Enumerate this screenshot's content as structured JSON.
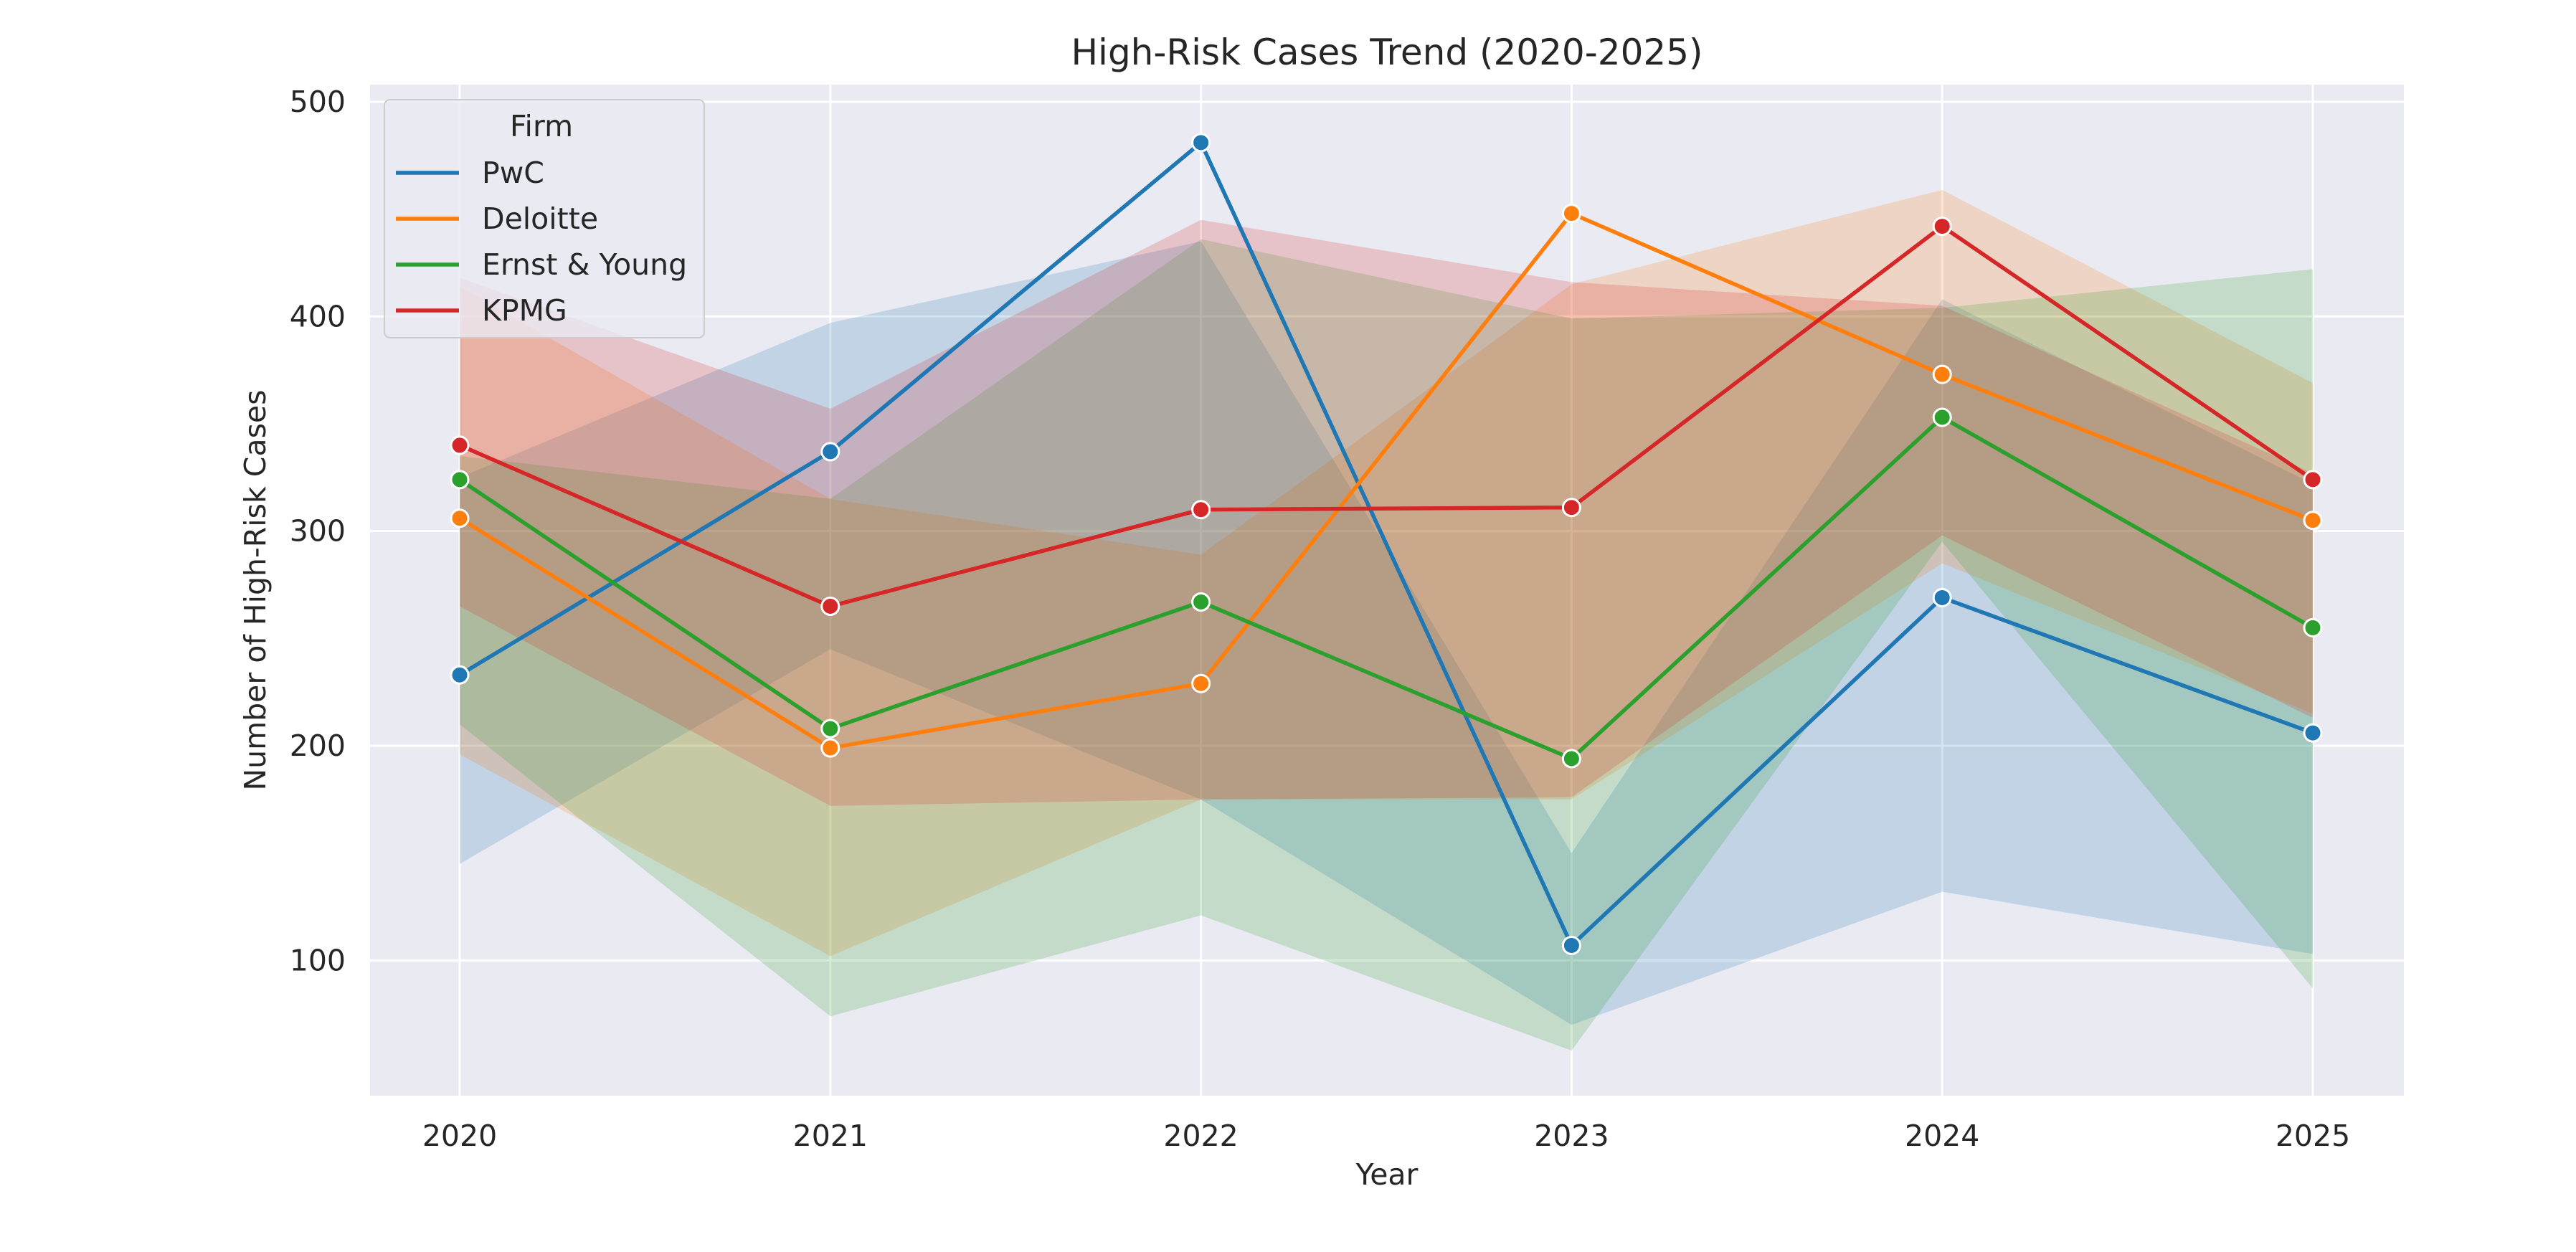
{
  "chart_data": {
    "type": "line",
    "title": "High-Risk Cases Trend (2020-2025)",
    "xlabel": "Year",
    "ylabel": "Number of High-Risk Cases",
    "categories": [
      "2020",
      "2021",
      "2022",
      "2023",
      "2024",
      "2025"
    ],
    "ylim": [
      37,
      508
    ],
    "yticks": [
      100,
      200,
      300,
      400,
      500
    ],
    "grid": true,
    "legend": {
      "title": "Firm",
      "placement": "top-left"
    },
    "series": [
      {
        "name": "PwC",
        "color": "#1f77b4",
        "values": [
          233,
          337,
          481,
          107,
          269,
          206
        ],
        "band_lower": [
          145,
          245,
          175,
          70,
          132,
          103
        ],
        "band_upper": [
          325,
          397,
          435,
          150,
          408,
          322
        ]
      },
      {
        "name": "Deloitte",
        "color": "#ff7f0e",
        "values": [
          306,
          199,
          229,
          448,
          373,
          305
        ],
        "band_lower": [
          196,
          102,
          175,
          175,
          285,
          215
        ],
        "band_upper": [
          414,
          315,
          289,
          415,
          459,
          369
        ]
      },
      {
        "name": "Ernst & Young",
        "color": "#2ca02c",
        "values": [
          324,
          208,
          267,
          194,
          353,
          255
        ],
        "band_lower": [
          210,
          74,
          121,
          58,
          295,
          87
        ],
        "band_upper": [
          335,
          315,
          436,
          399,
          404,
          422
        ]
      },
      {
        "name": "KPMG",
        "color": "#d62728",
        "values": [
          340,
          265,
          310,
          311,
          442,
          324
        ],
        "band_lower": [
          265,
          172,
          175,
          176,
          298,
          213
        ],
        "band_upper": [
          418,
          357,
          445,
          416,
          405,
          327
        ]
      }
    ]
  }
}
